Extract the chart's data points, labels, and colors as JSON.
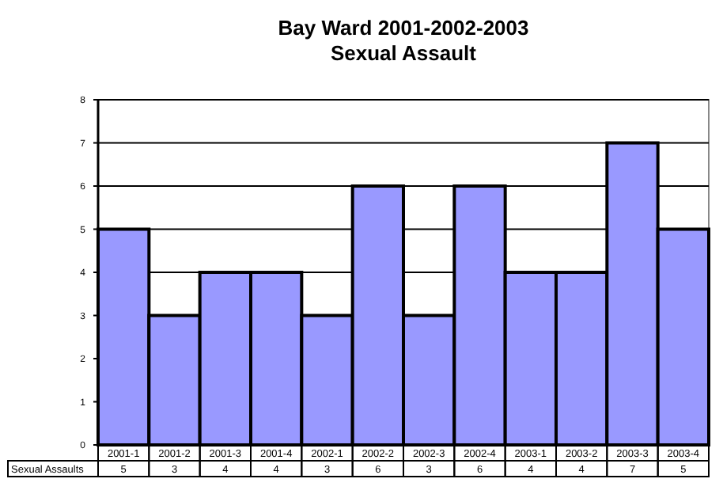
{
  "chart_data": {
    "type": "bar",
    "title": "Bay Ward  2001-2002-2003",
    "subtitle": "Sexual Assault",
    "categories": [
      "2001-1",
      "2001-2",
      "2001-3",
      "2001-4",
      "2002-1",
      "2002-2",
      "2002-3",
      "2002-4",
      "2003-1",
      "2003-2",
      "2003-3",
      "2003-4"
    ],
    "series": [
      {
        "name": "Sexual Assaults",
        "color": "#9999ff",
        "values": [
          5,
          3,
          4,
          4,
          3,
          6,
          3,
          6,
          4,
          4,
          7,
          5
        ]
      }
    ],
    "ylim": [
      0,
      8
    ],
    "yticks": [
      0,
      1,
      2,
      3,
      4,
      5,
      6,
      7,
      8
    ],
    "grid": "y",
    "data_labels": true
  }
}
